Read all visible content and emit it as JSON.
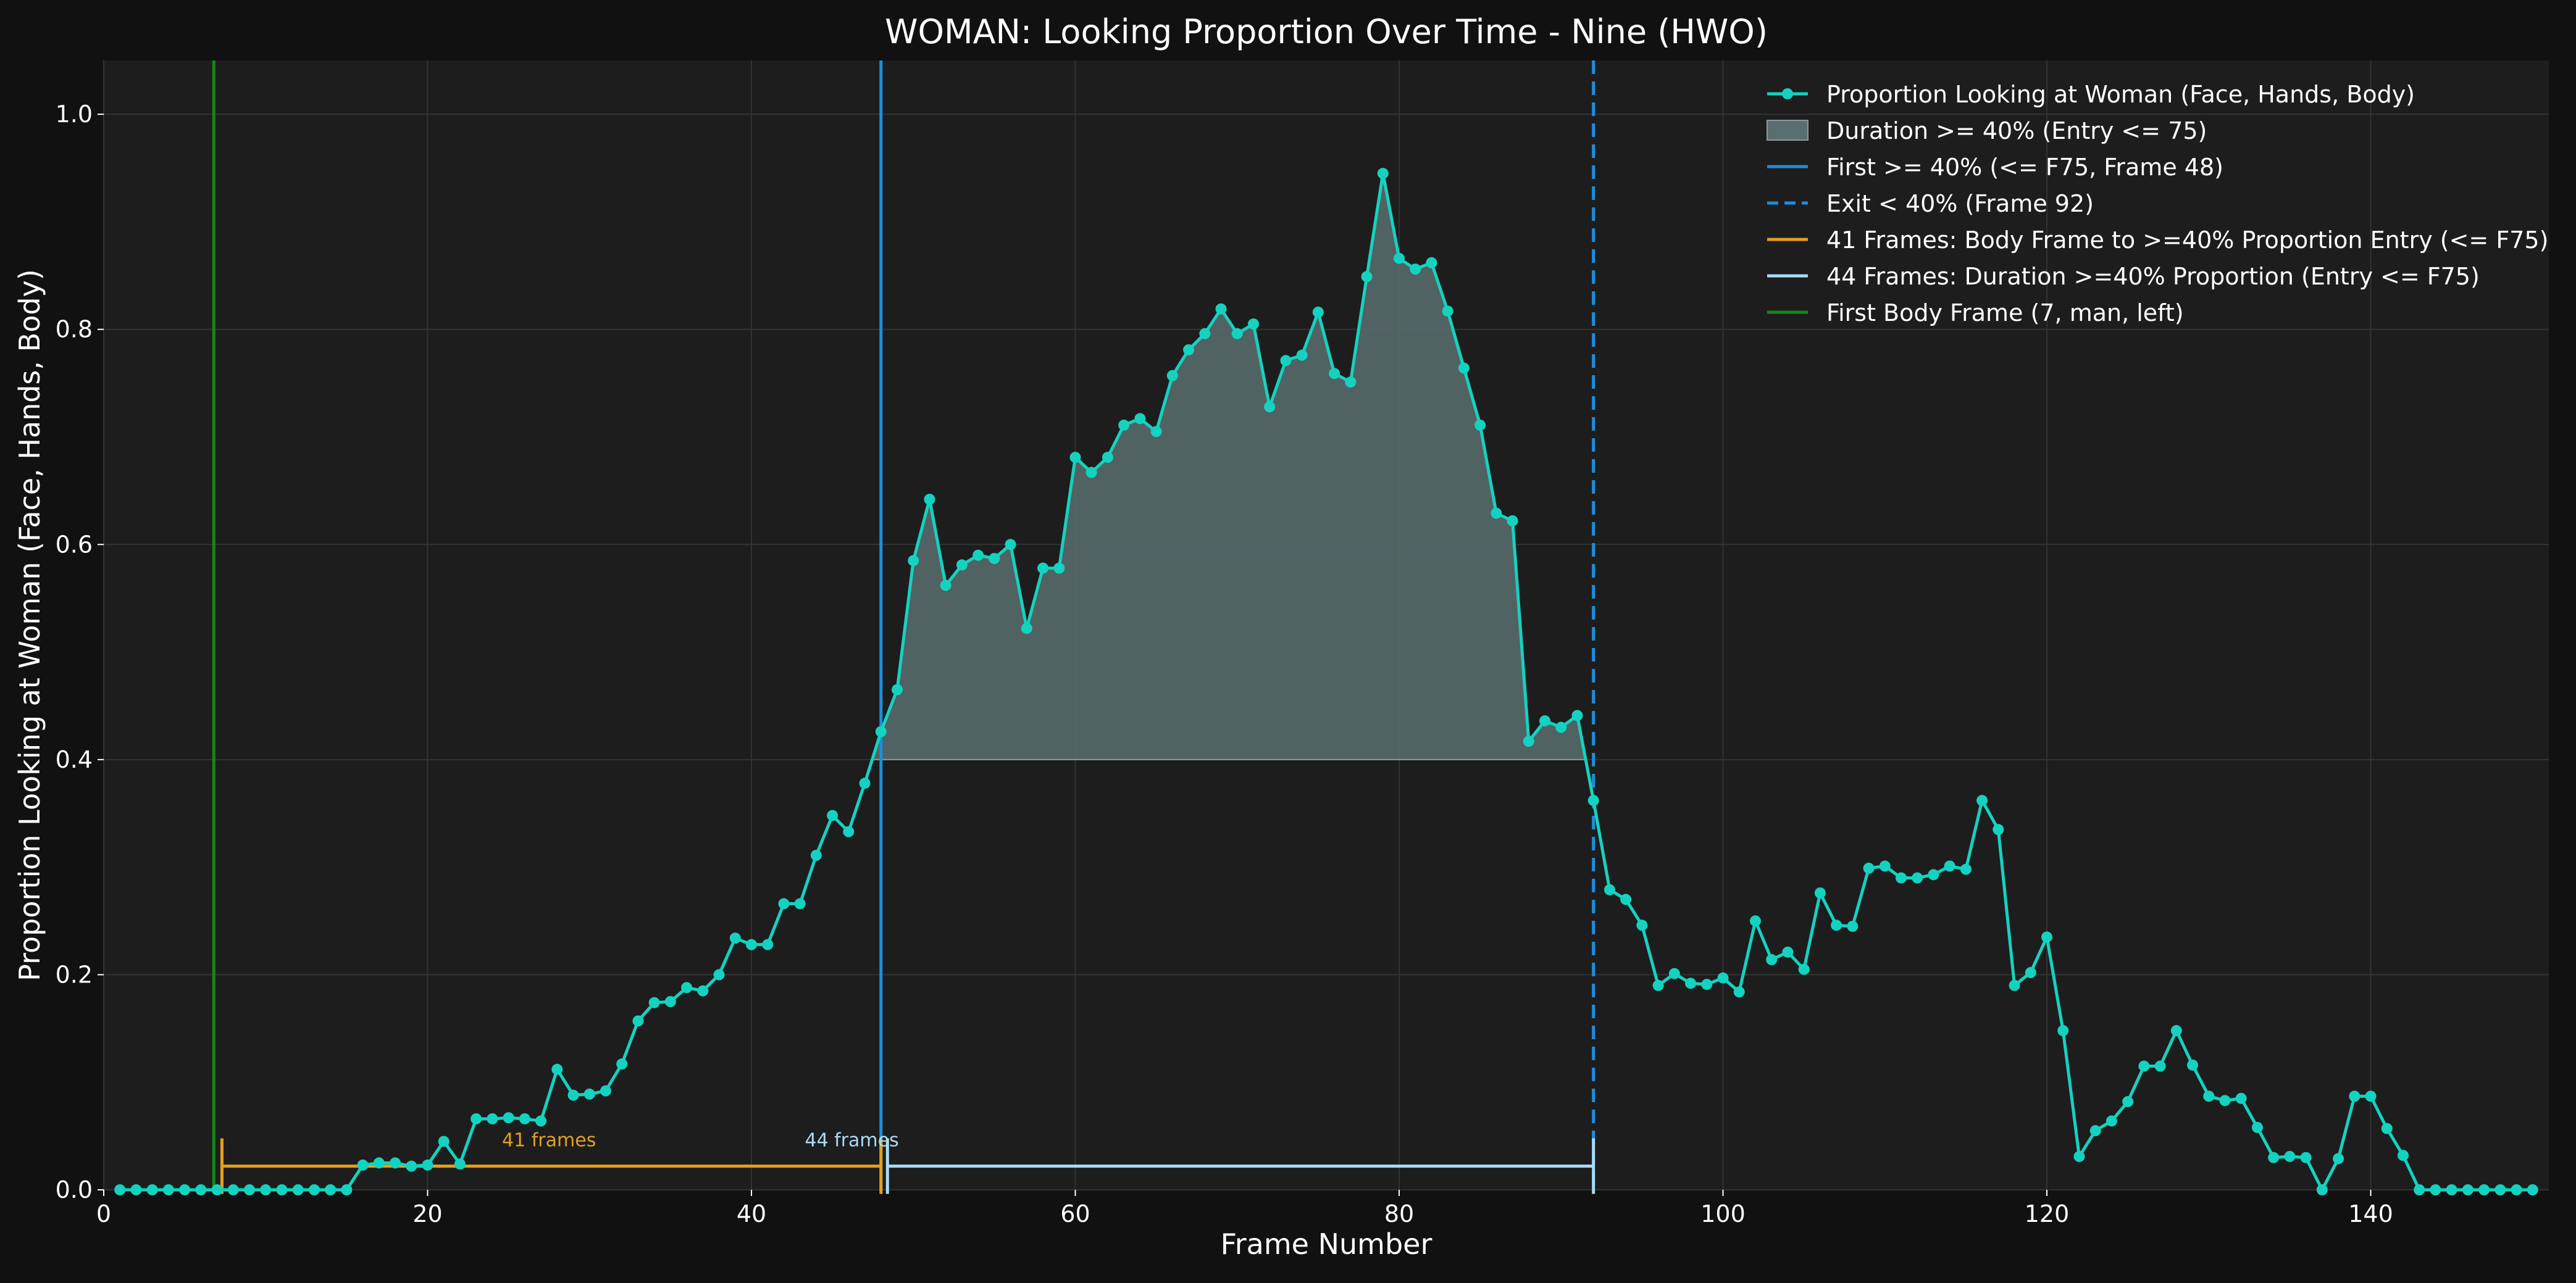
{
  "chart_data": {
    "type": "line",
    "title": "WOMAN: Looking Proportion Over Time - Nine (HWO)",
    "xlabel": "Frame Number",
    "ylabel": "Proportion Looking at Woman (Face, Hands, Body)",
    "xlim": [
      0,
      151
    ],
    "ylim": [
      0,
      1.05
    ],
    "xticks": [
      0,
      20,
      40,
      60,
      80,
      100,
      120,
      140
    ],
    "yticks": [
      0.0,
      0.2,
      0.4,
      0.6,
      0.8,
      1.0
    ],
    "xtick_labels": [
      "0",
      "20",
      "40",
      "60",
      "80",
      "100",
      "120",
      "140"
    ],
    "ytick_labels": [
      "0.0",
      "0.2",
      "0.4",
      "0.6",
      "0.8",
      "1.0"
    ],
    "grid": true,
    "legend_position": "top-right",
    "threshold": 0.4,
    "series": [
      {
        "name": "Proportion Looking at Woman (Face, Hands, Body)",
        "color": "#14d2c0",
        "x": [
          1,
          2,
          3,
          4,
          5,
          6,
          7,
          8,
          9,
          10,
          11,
          12,
          13,
          14,
          15,
          16,
          17,
          18,
          19,
          20,
          21,
          22,
          23,
          24,
          25,
          26,
          27,
          28,
          29,
          30,
          31,
          32,
          33,
          34,
          35,
          36,
          37,
          38,
          39,
          40,
          41,
          42,
          43,
          44,
          45,
          46,
          47,
          48,
          49,
          50,
          51,
          52,
          53,
          54,
          55,
          56,
          57,
          58,
          59,
          60,
          61,
          62,
          63,
          64,
          65,
          66,
          67,
          68,
          69,
          70,
          71,
          72,
          73,
          74,
          75,
          76,
          77,
          78,
          79,
          80,
          81,
          82,
          83,
          84,
          85,
          86,
          87,
          88,
          89,
          90,
          91,
          92,
          93,
          94,
          95,
          96,
          97,
          98,
          99,
          100,
          101,
          102,
          103,
          104,
          105,
          106,
          107,
          108,
          109,
          110,
          111,
          112,
          113,
          114,
          115,
          116,
          117,
          118,
          119,
          120,
          121,
          122,
          123,
          124,
          125,
          126,
          127,
          128,
          129,
          130,
          131,
          132,
          133,
          134,
          135,
          136,
          137,
          138,
          139,
          140,
          141,
          142,
          143,
          144,
          145,
          146,
          147,
          148,
          149,
          150
        ],
        "values": [
          0,
          0,
          0,
          0,
          0,
          0,
          0,
          0,
          0,
          0,
          0,
          0,
          0,
          0,
          0,
          0.023,
          0.025,
          0.025,
          0.022,
          0.023,
          0.045,
          0.024,
          0.066,
          0.066,
          0.067,
          0.066,
          0.064,
          0.112,
          0.088,
          0.089,
          0.092,
          0.117,
          0.157,
          0.174,
          0.175,
          0.188,
          0.185,
          0.2,
          0.234,
          0.228,
          0.228,
          0.266,
          0.266,
          0.311,
          0.348,
          0.333,
          0.378,
          0.426,
          0.465,
          0.585,
          0.642,
          0.562,
          0.581,
          0.59,
          0.587,
          0.6,
          0.522,
          0.578,
          0.578,
          0.681,
          0.667,
          0.681,
          0.711,
          0.717,
          0.705,
          0.757,
          0.781,
          0.796,
          0.819,
          0.796,
          0.805,
          0.728,
          0.771,
          0.776,
          0.816,
          0.759,
          0.751,
          0.849,
          0.945,
          0.866,
          0.856,
          0.862,
          0.817,
          0.764,
          0.711,
          0.629,
          0.622,
          0.417,
          0.436,
          0.43,
          0.441,
          0.362,
          0.279,
          0.27,
          0.246,
          0.19,
          0.201,
          0.192,
          0.191,
          0.197,
          0.184,
          0.25,
          0.214,
          0.221,
          0.205,
          0.276,
          0.246,
          0.245,
          0.299,
          0.301,
          0.29,
          0.29,
          0.293,
          0.301,
          0.298,
          0.362,
          0.335,
          0.19,
          0.202,
          0.235,
          0.148,
          0.031,
          0.055,
          0.064,
          0.082,
          0.115,
          0.115,
          0.148,
          0.116,
          0.087,
          0.083,
          0.085,
          0.058,
          0.03,
          0.031,
          0.03,
          0,
          0.029,
          0.087,
          0.087,
          0.057,
          0.032,
          0,
          0,
          0,
          0,
          0,
          0,
          0,
          0
        ]
      }
    ],
    "fill_region": {
      "label": "Duration >= 40% (Entry <= 75)",
      "x_start": 48,
      "x_end": 92,
      "baseline": 0.4,
      "color": "#5a6e70"
    },
    "vertical_lines": [
      {
        "label": "First >= 40% (<= F75, Frame 48)",
        "x": 48,
        "color": "#1a8fe0",
        "style": "solid"
      },
      {
        "label": "Exit < 40% (Frame 92)",
        "x": 92,
        "color": "#1a8fe0",
        "style": "dashed"
      },
      {
        "label": "First Body Frame (7, man, left)",
        "x": 6.8,
        "color": "#138a13",
        "style": "solid"
      }
    ],
    "spans": [
      {
        "label": "41 Frames: Body Frame to >=40% Proportion Entry (<= F75)",
        "annotation": "41 frames",
        "x_start": 7.3,
        "x_end": 48,
        "y": 0.022,
        "color": "#e0a020"
      },
      {
        "label": "44 Frames: Duration >=40% Proportion (Entry <= F75)",
        "annotation": "44 frames",
        "x_start": 48.4,
        "x_end": 92,
        "y": 0.022,
        "color": "#a9dcf5"
      }
    ],
    "legend": [
      {
        "label": "Proportion Looking at Woman (Face, Hands, Body)",
        "kind": "line-marker",
        "color": "#14d2c0"
      },
      {
        "label": "Duration >= 40% (Entry <= 75)",
        "kind": "patch",
        "color": "#5a6e70"
      },
      {
        "label": "First >= 40% (<= F75, Frame 48)",
        "kind": "line",
        "color": "#1a8fe0"
      },
      {
        "label": "Exit < 40% (Frame 92)",
        "kind": "dashed",
        "color": "#1a8fe0"
      },
      {
        "label": "41 Frames: Body Frame to >=40% Proportion Entry (<= F75)",
        "kind": "line",
        "color": "#e0a020"
      },
      {
        "label": "44 Frames: Duration >=40% Proportion (Entry <= F75)",
        "kind": "line",
        "color": "#a9dcf5"
      },
      {
        "label": "First Body Frame (7, man, left)",
        "kind": "line",
        "color": "#138a13"
      }
    ],
    "colors": {
      "figure_background": "#111111",
      "axes_background": "#1d1d1d",
      "grid": "#333333",
      "text": "#ffffff"
    }
  }
}
